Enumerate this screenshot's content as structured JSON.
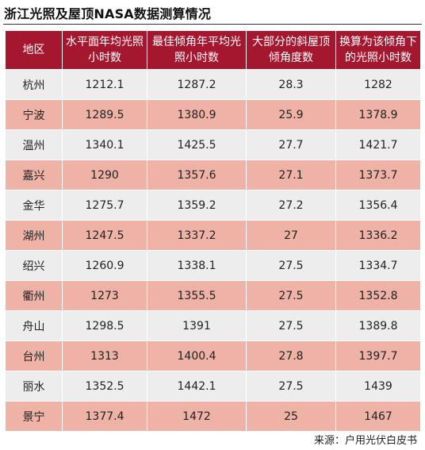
{
  "title": "浙江光照及屋顶NASA数据测算情况",
  "columns": [
    "地区",
    "水平面年均光照小时数",
    "最佳倾角年平均光照小时数",
    "大部分的斜屋顶倾角度数",
    "换算为该倾角下的光照小时数"
  ],
  "rows": [
    [
      "杭州",
      "1212.1",
      "1287.2",
      "28.3",
      "1282"
    ],
    [
      "宁波",
      "1289.5",
      "1380.9",
      "25.9",
      "1378.9"
    ],
    [
      "温州",
      "1340.1",
      "1425.5",
      "27.7",
      "1421.7"
    ],
    [
      "嘉兴",
      "1290",
      "1357.6",
      "27.1",
      "1373.7"
    ],
    [
      "金华",
      "1275.7",
      "1359.2",
      "27.2",
      "1356.4"
    ],
    [
      "湖州",
      "1247.5",
      "1337.2",
      "27",
      "1336.2"
    ],
    [
      "绍兴",
      "1260.9",
      "1338.1",
      "27.5",
      "1334.7"
    ],
    [
      "衢州",
      "1273",
      "1355.5",
      "27.5",
      "1352.8"
    ],
    [
      "舟山",
      "1298.5",
      "1391",
      "27.5",
      "1389.8"
    ],
    [
      "台州",
      "1313",
      "1400.4",
      "27.8",
      "1397.7"
    ],
    [
      "丽水",
      "1352.5",
      "1442.1",
      "27.5",
      "1439"
    ],
    [
      "景宁",
      "1377.4",
      "1472",
      "25",
      "1467"
    ]
  ],
  "source": "来源：户用光伏白皮书",
  "colors": {
    "header_bg": "#a5162f",
    "row_gray": "#ededed",
    "row_pink": "#eeb2a6"
  }
}
